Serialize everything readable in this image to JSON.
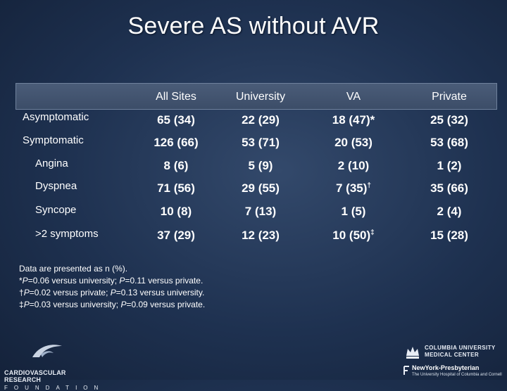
{
  "title": "Severe AS without AVR",
  "columns": [
    "All Sites",
    "University",
    "VA",
    "Private"
  ],
  "rows": [
    {
      "label": "Asymptomatic",
      "cells": [
        "65 (34)",
        "22 (29)",
        "18 (47)*",
        "25 (32)"
      ]
    },
    {
      "label": "Symptomatic",
      "cells": [
        "126 (66)",
        "53 (71)",
        "20 (53)",
        "53 (68)"
      ]
    },
    {
      "label": "Angina",
      "cells": [
        "8 (6)",
        "5 (9)",
        "2 (10)",
        "1 (2)"
      ]
    },
    {
      "label": "Dyspnea",
      "cells": [
        "71 (56)",
        "29 (55)",
        "7 (35)",
        "35 (66)"
      ]
    },
    {
      "label": "Syncope",
      "cells": [
        "10 (8)",
        "7 (13)",
        "1 (5)",
        "2 (4)"
      ]
    },
    {
      "label": ">2 symptoms",
      "cells": [
        "37 (29)",
        "12 (23)",
        "10 (50)",
        "15 (28)"
      ]
    }
  ],
  "marks": {
    "dagger": "†",
    "double_dagger": "‡"
  },
  "notes": {
    "line1": "Data are presented as n (%).",
    "line2_a": "*",
    "line2_p1": "P",
    "line2_b": "=0.06 versus university; ",
    "line2_p2": "P",
    "line2_c": "=0.11 versus private.",
    "line3_a": "†",
    "line3_p1": "P",
    "line3_b": "=0.02 versus private; ",
    "line3_p2": "P",
    "line3_c": "=0.13 versus university.",
    "line4_a": "‡",
    "line4_p1": "P",
    "line4_b": "=0.03 versus university; ",
    "line4_p2": "P",
    "line4_c": "=0.09 versus private."
  },
  "footer": {
    "crf_line1": "CARDIOVASCULAR RESEARCH",
    "crf_line2": "FOUNDATION",
    "columbia_line1": "COLUMBIA UNIVERSITY",
    "columbia_line2": "MEDICAL CENTER",
    "nyp": "NewYork-Presbyterian",
    "nyp_sub": "The University Hospital of Columbia and Cornell"
  }
}
